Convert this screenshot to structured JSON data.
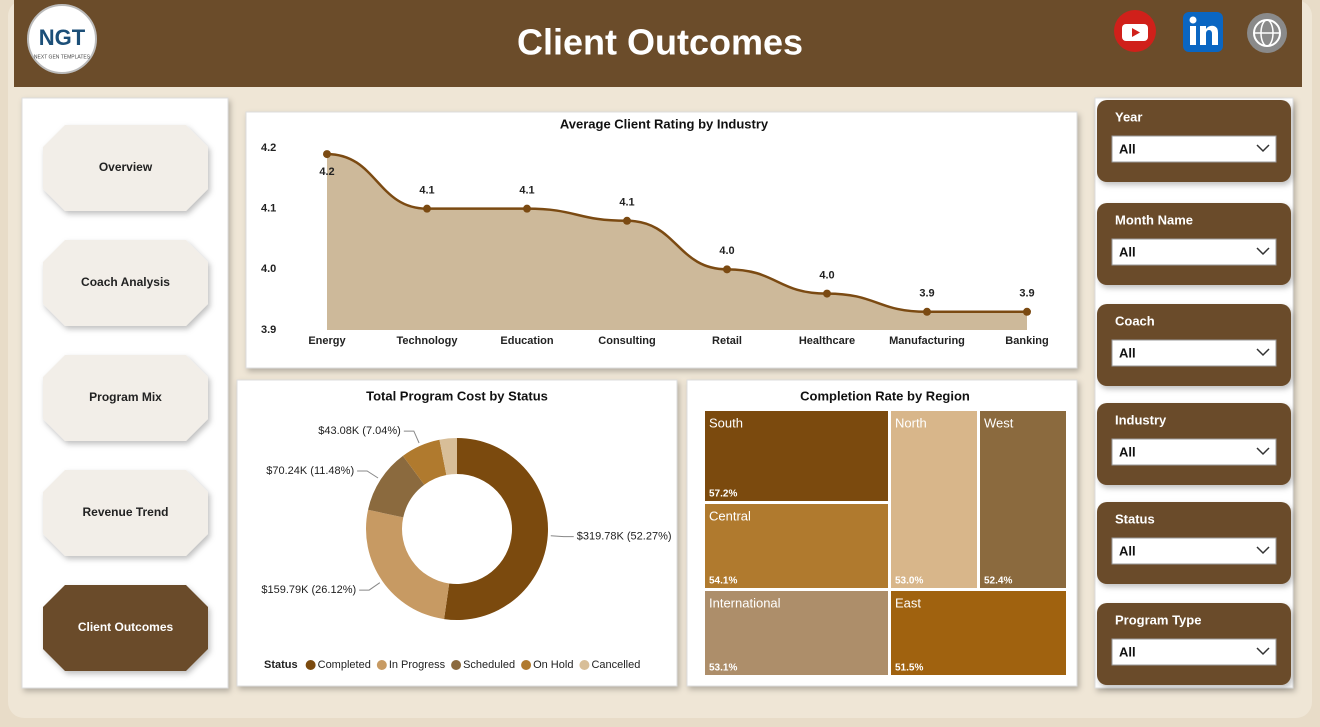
{
  "header": {
    "title": "Client Outcomes",
    "logo": "NGT",
    "logo_subtitle": "NEXT GEN TEMPLATES"
  },
  "nav": [
    "Overview",
    "Coach Analysis",
    "Program Mix",
    "Revenue Trend",
    "Client Outcomes"
  ],
  "filters": [
    {
      "label": "Year",
      "value": "All"
    },
    {
      "label": "Month Name",
      "value": "All"
    },
    {
      "label": "Coach",
      "value": "All"
    },
    {
      "label": "Industry",
      "value": "All"
    },
    {
      "label": "Status",
      "value": "All"
    },
    {
      "label": "Program Type",
      "value": "All"
    }
  ],
  "chart_data": [
    {
      "type": "area",
      "title": "Average Client Rating by Industry",
      "categories": [
        "Energy",
        "Technology",
        "Education",
        "Consulting",
        "Retail",
        "Healthcare",
        "Manufacturing",
        "Banking"
      ],
      "values": [
        4.19,
        4.1,
        4.1,
        4.08,
        4.0,
        3.96,
        3.93,
        3.93
      ],
      "value_labels": [
        "4.2",
        "4.1",
        "4.1",
        "4.1",
        "4.0",
        "4.0",
        "3.9",
        "3.9"
      ],
      "ylim": [
        3.9,
        4.2
      ],
      "yticks": [
        3.9,
        {
          "value": 4,
          "label": "4.0"
        },
        4.1,
        4.2
      ],
      "color": "#7b4a12",
      "fill": "#cdb99a"
    },
    {
      "type": "donut",
      "title": "Total Program Cost by Status",
      "legend_title": "Status",
      "categories": [
        "Completed",
        "In Progress",
        "Scheduled",
        "On Hold",
        "Cancelled"
      ],
      "values": [
        319780,
        159790,
        70240,
        43080,
        18900
      ],
      "value_labels": [
        "$319.78K (52.27%)",
        "$159.79K (26.12%)",
        "$70.24K (11.48%)",
        "$43.08K (7.04%)",
        null
      ],
      "colors": [
        "#7b4a0e",
        "#c79a63",
        "#8b6a3e",
        "#b07a2e",
        "#d8be98"
      ]
    },
    {
      "type": "treemap",
      "title": "Completion Rate by Region",
      "categories": [
        "South",
        "North",
        "West",
        "Central",
        "International",
        "East"
      ],
      "values": [
        57.2,
        53.0,
        52.4,
        54.1,
        53.1,
        51.5
      ],
      "value_labels": [
        "57.2%",
        "53.0%",
        "52.4%",
        "54.1%",
        "53.1%",
        "51.5%"
      ],
      "colors": [
        "#7b4a0e",
        "#d8b68a",
        "#8b6a3e",
        "#b07a2e",
        "#ad8e6a",
        "#a0620f"
      ]
    }
  ]
}
